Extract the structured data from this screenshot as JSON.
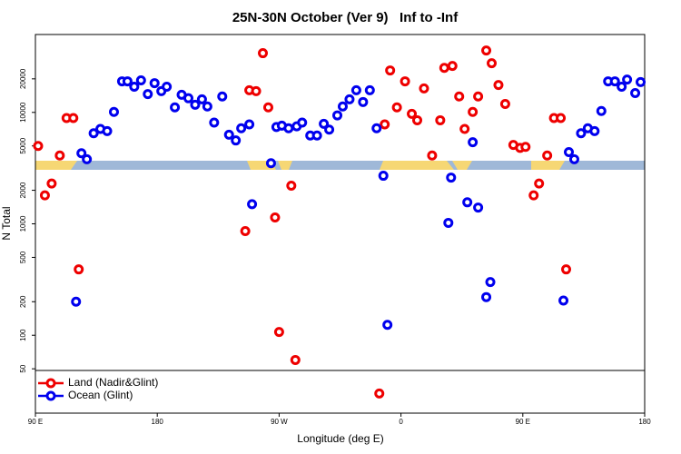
{
  "chart_data": {
    "type": "scatter",
    "title": "25N-30N October (Ver 9)   Inf to -Inf",
    "x_label": "Longitude (deg E)",
    "y_label": "N Total",
    "xlim": [
      90,
      540
    ],
    "xticks": [
      {
        "value": 90,
        "label": "90 E"
      },
      {
        "value": 180,
        "label": "180"
      },
      {
        "value": 270,
        "label": "90 W"
      },
      {
        "value": 360,
        "label": "0"
      },
      {
        "value": 450,
        "label": "90 E"
      },
      {
        "value": 540,
        "label": "180"
      }
    ],
    "ylim": [
      20,
      50000
    ],
    "yticks": [
      50,
      100,
      200,
      500,
      1000,
      2000,
      5000,
      10000,
      20000
    ],
    "log_y": true,
    "legend": "bottom-left",
    "series": [
      {
        "name": "Land (Nadir&Glint)",
        "color": "#ee0000",
        "x": [
          92,
          97,
          102,
          108,
          113,
          118,
          122,
          245,
          248,
          253,
          258,
          262,
          267,
          270,
          279,
          282,
          344,
          348,
          352,
          357,
          363,
          368,
          372,
          377,
          383,
          389,
          392,
          398,
          403,
          407,
          413,
          417,
          423,
          427,
          432,
          437,
          443,
          448,
          452,
          458,
          462,
          468,
          473,
          478,
          482
        ],
        "values": [
          5000,
          1800,
          2300,
          4100,
          8900,
          8900,
          390,
          860,
          15800,
          15500,
          34000,
          11100,
          1140,
          107,
          2200,
          60,
          30,
          7800,
          23800,
          11100,
          19000,
          9700,
          8500,
          16400,
          4100,
          8500,
          25100,
          26100,
          13900,
          7100,
          10100,
          13900,
          35900,
          27600,
          17600,
          11900,
          5100,
          4800,
          4900,
          1800,
          2300,
          4100,
          8900,
          8900,
          390
        ]
      },
      {
        "name": "Ocean (Glint)",
        "color": "#0000ee",
        "x": [
          120,
          124,
          128,
          133,
          138,
          143,
          148,
          154,
          158,
          163,
          168,
          173,
          178,
          183,
          187,
          193,
          198,
          203,
          208,
          213,
          217,
          222,
          228,
          233,
          238,
          242,
          248,
          250,
          264,
          268,
          272,
          277,
          283,
          287,
          293,
          298,
          303,
          307,
          313,
          317,
          322,
          327,
          332,
          337,
          342,
          347,
          350,
          395,
          397,
          409,
          413,
          417,
          423,
          426,
          480,
          484,
          488,
          493,
          498,
          503,
          508,
          513,
          518,
          523,
          527,
          533,
          537
        ],
        "values": [
          200,
          4300,
          3800,
          6500,
          7100,
          6800,
          10100,
          19000,
          19000,
          17000,
          19400,
          14600,
          18300,
          15500,
          17000,
          11100,
          14400,
          13400,
          11700,
          13100,
          11300,
          8100,
          13900,
          6300,
          5600,
          7200,
          7800,
          1500,
          3500,
          7400,
          7600,
          7200,
          7500,
          8100,
          6200,
          6200,
          7900,
          7000,
          9400,
          11300,
          13100,
          15800,
          12400,
          15800,
          7200,
          2700,
          124,
          1020,
          2600,
          1560,
          5400,
          1400,
          220,
          300,
          205,
          4400,
          3800,
          6500,
          7200,
          6800,
          10300,
          19000,
          19000,
          17000,
          19700,
          14900,
          18700
        ]
      }
    ]
  }
}
